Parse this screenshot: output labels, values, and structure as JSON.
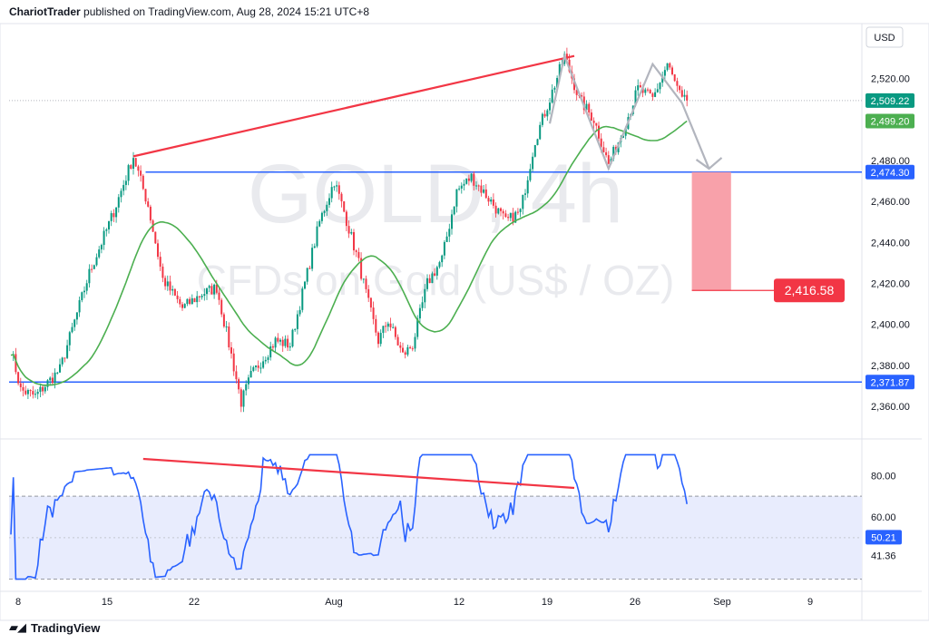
{
  "header": {
    "publisher": "ChariotTrader",
    "published_text": " published on TradingView.com, Aug 28, 2024 15:21 UTC+8"
  },
  "watermark": {
    "symbol": "GOLD, 4h",
    "description": "CFDs on Gold (US$ / OZ)"
  },
  "currency_label": "USD",
  "footer": {
    "logo_text": "TradingView"
  },
  "colors": {
    "up": "#089981",
    "down": "#f23645",
    "ma": "#4caf50",
    "level": "#2962ff",
    "trendline": "#f23645",
    "rsi": "#2962ff",
    "rsi_band": "#e8ecfd",
    "target_box": "#f8a1aa",
    "projection": "#b2b5be"
  },
  "chart_data": [
    {
      "type": "candlestick",
      "title": "GOLD, 4h",
      "ylim": [
        2345,
        2545
      ],
      "y_ticks": [
        2360,
        2380,
        2400,
        2420,
        2440,
        2460,
        2480,
        2500,
        2520
      ],
      "y_tick_labels": [
        "2,360.00",
        "2,380.00",
        "2,400.00",
        "2,420.00",
        "2,440.00",
        "2,460.00",
        "2,480.00",
        "",
        "2,520.00"
      ],
      "x_tick_labels": [
        "8",
        "15",
        "22",
        "Aug",
        "12",
        "19",
        "26",
        "Sep",
        "9"
      ],
      "price_tags": [
        {
          "label": "2,509.22",
          "value": 2509.22,
          "color": "#089981"
        },
        {
          "label": "2,499.20",
          "value": 2499.2,
          "color": "#4caf50"
        },
        {
          "label": "2,474.30",
          "value": 2474.3,
          "color": "#2962ff"
        },
        {
          "label": "2,371.87",
          "value": 2371.87,
          "color": "#2962ff"
        }
      ],
      "horizontal_levels": [
        2474.3,
        2371.87
      ],
      "moving_average_last": 2499.2,
      "last_close": 2509.22,
      "target_label": "2,416.58",
      "target_value": 2416.58,
      "trendline": {
        "from_price": 2482,
        "to_price": 2531
      },
      "anchors": [
        [
          0,
          2388
        ],
        [
          4,
          2368
        ],
        [
          10,
          2365
        ],
        [
          20,
          2378
        ],
        [
          32,
          2425
        ],
        [
          42,
          2455
        ],
        [
          50,
          2482
        ],
        [
          56,
          2458
        ],
        [
          62,
          2422
        ],
        [
          70,
          2408
        ],
        [
          78,
          2415
        ],
        [
          84,
          2418
        ],
        [
          90,
          2385
        ],
        [
          94,
          2362
        ],
        [
          98,
          2375
        ],
        [
          108,
          2392
        ],
        [
          114,
          2390
        ],
        [
          120,
          2420
        ],
        [
          126,
          2450
        ],
        [
          132,
          2470
        ],
        [
          136,
          2455
        ],
        [
          142,
          2430
        ],
        [
          146,
          2410
        ],
        [
          150,
          2392
        ],
        [
          154,
          2402
        ],
        [
          160,
          2385
        ],
        [
          164,
          2390
        ],
        [
          170,
          2420
        ],
        [
          176,
          2432
        ],
        [
          182,
          2465
        ],
        [
          188,
          2472
        ],
        [
          196,
          2460
        ],
        [
          202,
          2450
        ],
        [
          208,
          2455
        ],
        [
          214,
          2490
        ],
        [
          220,
          2510
        ],
        [
          226,
          2531
        ],
        [
          232,
          2510
        ],
        [
          238,
          2500
        ],
        [
          244,
          2478
        ],
        [
          250,
          2495
        ],
        [
          256,
          2515
        ],
        [
          262,
          2510
        ],
        [
          268,
          2527
        ],
        [
          274,
          2509
        ]
      ]
    },
    {
      "type": "line",
      "title": "RSI",
      "ylim": [
        25,
        95
      ],
      "y_ticks": [
        80,
        60
      ],
      "y_tick_labels": [
        "80.00",
        "60.00"
      ],
      "band": [
        30,
        70
      ],
      "last_value_label": "50.21",
      "last_value": 50.21,
      "secondary_label": "41.36",
      "secondary_value": 41.36,
      "divergence": {
        "from_value": 88,
        "to_value": 74
      }
    }
  ]
}
